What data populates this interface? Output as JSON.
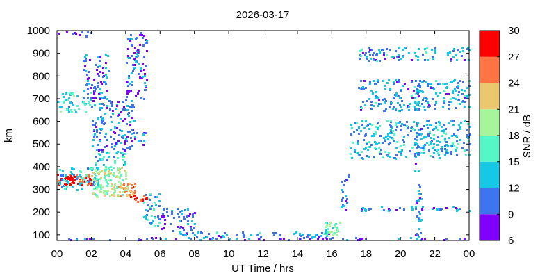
{
  "chart_data": {
    "type": "heatmap",
    "title": "2026-03-17",
    "xlabel": "UT Time / hrs",
    "ylabel": "km",
    "xlim": [
      0,
      24
    ],
    "ylim": [
      75,
      1000
    ],
    "x_ticks": [
      "00",
      "02",
      "04",
      "06",
      "08",
      "10",
      "12",
      "14",
      "16",
      "18",
      "20",
      "22",
      "00"
    ],
    "y_ticks": [
      "100",
      "200",
      "300",
      "400",
      "500",
      "600",
      "700",
      "800",
      "900",
      "1000"
    ],
    "colorbar": {
      "label": "SNR / dB",
      "range": [
        6,
        30
      ],
      "ticks": [
        "6",
        "9",
        "12",
        "15",
        "18",
        "21",
        "24",
        "27",
        "30"
      ],
      "bins": [
        {
          "from": 6,
          "to": 9,
          "color": "#8000ff"
        },
        {
          "from": 9,
          "to": 12,
          "color": "#3f74f0"
        },
        {
          "from": 12,
          "to": 15,
          "color": "#15c8e6"
        },
        {
          "from": 15,
          "to": 18,
          "color": "#55f7c6"
        },
        {
          "from": 18,
          "to": 21,
          "color": "#a6f59a"
        },
        {
          "from": 21,
          "to": 24,
          "color": "#ebc86e"
        },
        {
          "from": 24,
          "to": 27,
          "color": "#ff7442"
        },
        {
          "from": 27,
          "to": 30,
          "color": "#ff0000"
        }
      ]
    },
    "echo_regions": [
      {
        "t_start": 0.0,
        "t_end": 1.0,
        "h_start": 325,
        "h_end": 370,
        "snr": 28
      },
      {
        "t_start": 1.0,
        "t_end": 2.0,
        "h_start": 320,
        "h_end": 365,
        "snr": 26
      },
      {
        "t_start": 0.0,
        "t_end": 2.5,
        "h_start": 300,
        "h_end": 400,
        "snr": 14
      },
      {
        "t_start": 2.0,
        "t_end": 4.0,
        "h_start": 270,
        "h_end": 400,
        "snr": 19
      },
      {
        "t_start": 3.5,
        "t_end": 4.5,
        "h_start": 270,
        "h_end": 330,
        "snr": 24
      },
      {
        "t_start": 4.5,
        "t_end": 5.2,
        "h_start": 250,
        "h_end": 280,
        "snr": 28
      },
      {
        "t_start": 2.0,
        "t_end": 4.0,
        "h_start": 400,
        "h_end": 470,
        "snr": 14
      },
      {
        "t_start": 2.0,
        "t_end": 4.5,
        "h_start": 470,
        "h_end": 700,
        "snr": 11
      },
      {
        "t_start": 0.0,
        "t_end": 2.0,
        "h_start": 640,
        "h_end": 730,
        "snr": 15
      },
      {
        "t_start": 1.5,
        "t_end": 3.0,
        "h_start": 700,
        "h_end": 900,
        "snr": 10
      },
      {
        "t_start": 4.0,
        "t_end": 5.2,
        "h_start": 700,
        "h_end": 1000,
        "snr": 10
      },
      {
        "t_start": 4.5,
        "t_end": 5.2,
        "h_start": 500,
        "h_end": 560,
        "snr": 11
      },
      {
        "t_start": 5.0,
        "t_end": 6.0,
        "h_start": 140,
        "h_end": 300,
        "snr": 13
      },
      {
        "t_start": 6.0,
        "t_end": 8.0,
        "h_start": 120,
        "h_end": 220,
        "snr": 10
      },
      {
        "t_start": 7.0,
        "t_end": 16.0,
        "h_start": 85,
        "h_end": 115,
        "snr": 12
      },
      {
        "t_start": 15.5,
        "t_end": 16.5,
        "h_start": 100,
        "h_end": 160,
        "snr": 17
      },
      {
        "t_start": 16.5,
        "t_end": 17.0,
        "h_start": 200,
        "h_end": 370,
        "snr": 12
      },
      {
        "t_start": 17.0,
        "t_end": 24.0,
        "h_start": 210,
        "h_end": 230,
        "snr": 11
      },
      {
        "t_start": 17.0,
        "t_end": 24.0,
        "h_start": 440,
        "h_end": 610,
        "snr": 13
      },
      {
        "t_start": 17.5,
        "t_end": 24.0,
        "h_start": 650,
        "h_end": 790,
        "snr": 12
      },
      {
        "t_start": 17.5,
        "t_end": 24.0,
        "h_start": 870,
        "h_end": 930,
        "snr": 12
      },
      {
        "t_start": 20.8,
        "t_end": 21.2,
        "h_start": 90,
        "h_end": 600,
        "snr": 11
      },
      {
        "t_start": 0.0,
        "t_end": 24.0,
        "h_start": 80,
        "h_end": 90,
        "snr": 10
      },
      {
        "t_start": 0.0,
        "t_end": 2.0,
        "h_start": 980,
        "h_end": 1000,
        "snr": 10
      }
    ]
  }
}
